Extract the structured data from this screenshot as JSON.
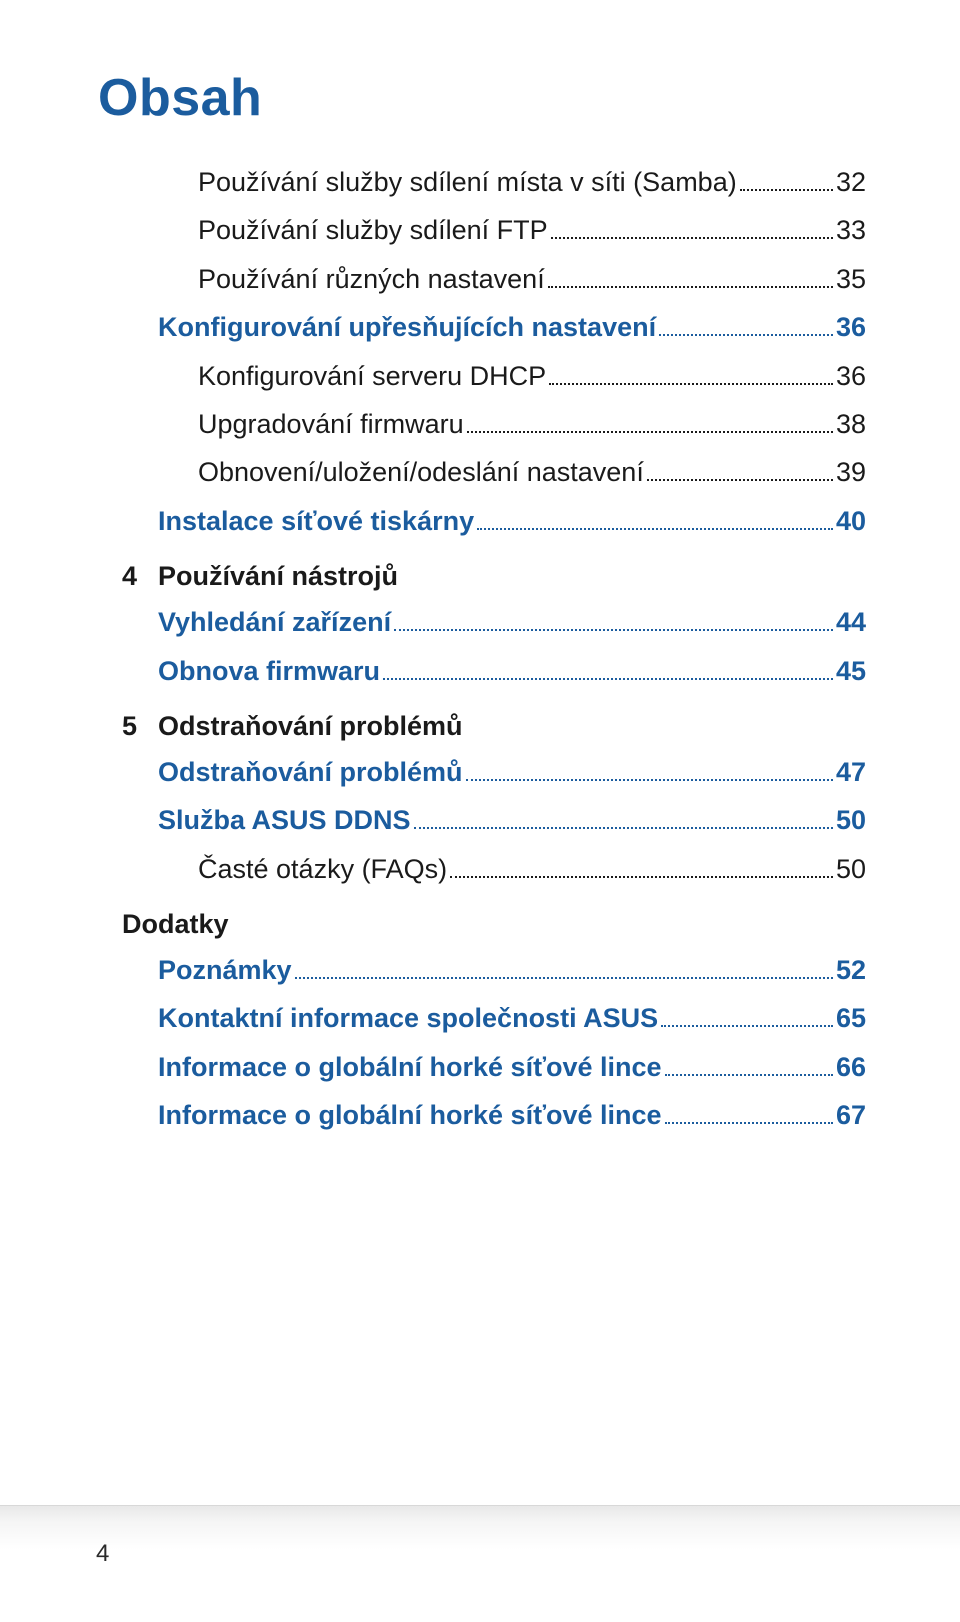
{
  "title": "Obsah",
  "page_number": "4",
  "colors": {
    "blue": "#1b5c9e",
    "black": "#1a1a1a",
    "band": "#e8e8e8"
  },
  "lines": {
    "l1": {
      "label": "Používání služby sdílení místa v síti (Samba)",
      "page": "32"
    },
    "l2": {
      "label": "Používání služby sdílení FTP",
      "page": "33"
    },
    "l3": {
      "label": "Používání různých nastavení",
      "page": "35"
    },
    "l4": {
      "label": "Konfigurování upřesňujících nastavení",
      "page": "36"
    },
    "l5": {
      "label": "Konfigurování serveru DHCP",
      "page": "36"
    },
    "l6": {
      "label": "Upgradování firmwaru",
      "page": "38"
    },
    "l7": {
      "label": "Obnovení/uložení/odeslání nastavení",
      "page": "39"
    },
    "l8": {
      "label": "Instalace síťové tiskárny",
      "page": "40"
    },
    "l9": {
      "label": "Vyhledání zařízení",
      "page": "44"
    },
    "l10": {
      "label": "Obnova firmwaru",
      "page": "45"
    },
    "l11": {
      "label": "Odstraňování problémů",
      "page": "47"
    },
    "l12": {
      "label": "Služba ASUS DDNS",
      "page": "50"
    },
    "l13": {
      "label": "Časté otázky (FAQs)",
      "page": "50"
    },
    "l14": {
      "label": "Poznámky",
      "page": "52"
    },
    "l15": {
      "label": "Kontaktní informace společnosti ASUS",
      "page": "65"
    },
    "l16": {
      "label": "Informace o globální horké síťové lince",
      "page": "66"
    },
    "l17": {
      "label": "Informace o globální horké síťové lince",
      "page": "67"
    }
  },
  "chapters": {
    "c4": {
      "num": "4",
      "title": "Používání nástrojů"
    },
    "c5": {
      "num": "5",
      "title": "Odstraňování problémů"
    },
    "appendix": {
      "title": "Dodatky"
    }
  }
}
